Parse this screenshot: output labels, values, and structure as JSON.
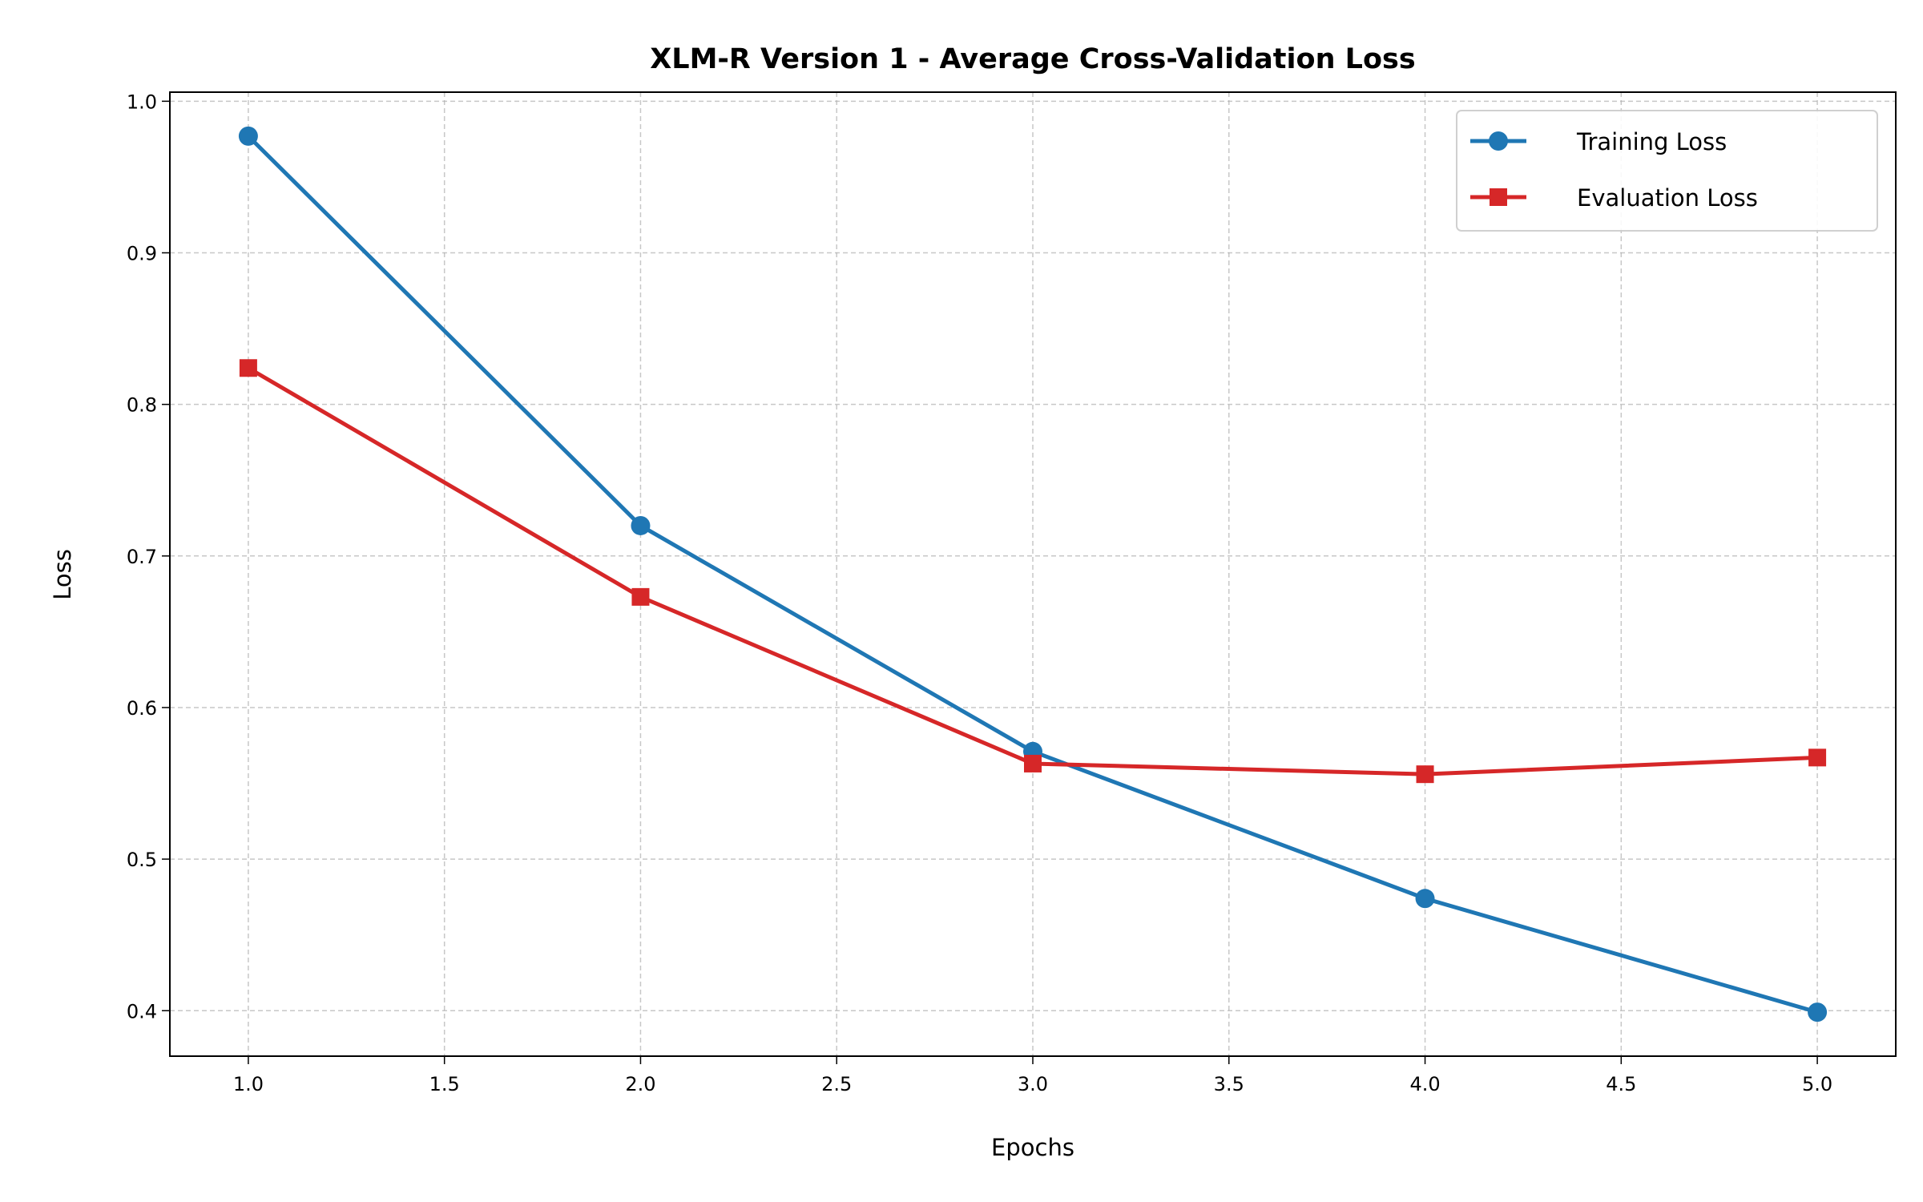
{
  "chart_data": {
    "type": "line",
    "title": "XLM-R Version 1 - Average Cross-Validation Loss",
    "xlabel": "Epochs",
    "ylabel": "Loss",
    "x": [
      1,
      2,
      3,
      4,
      5
    ],
    "xlim": [
      0.8,
      5.2
    ],
    "ylim": [
      0.37,
      1.006
    ],
    "xticks": [
      1.0,
      1.5,
      2.0,
      2.5,
      3.0,
      3.5,
      4.0,
      4.5,
      5.0
    ],
    "xtick_labels": [
      "1.0",
      "1.5",
      "2.0",
      "2.5",
      "3.0",
      "3.5",
      "4.0",
      "4.5",
      "5.0"
    ],
    "yticks": [
      0.4,
      0.5,
      0.6,
      0.7,
      0.8,
      0.9,
      1.0
    ],
    "ytick_labels": [
      "0.4",
      "0.5",
      "0.6",
      "0.7",
      "0.8",
      "0.9",
      "1.0"
    ],
    "grid": true,
    "grid_style": "dashed",
    "legend_position": "top-right",
    "series": [
      {
        "name": "Training Loss",
        "values": [
          0.977,
          0.72,
          0.571,
          0.474,
          0.399
        ],
        "color": "#1f77b4",
        "marker": "circle"
      },
      {
        "name": "Evaluation Loss",
        "values": [
          0.824,
          0.673,
          0.563,
          0.556,
          0.567
        ],
        "color": "#d62728",
        "marker": "square"
      }
    ]
  }
}
